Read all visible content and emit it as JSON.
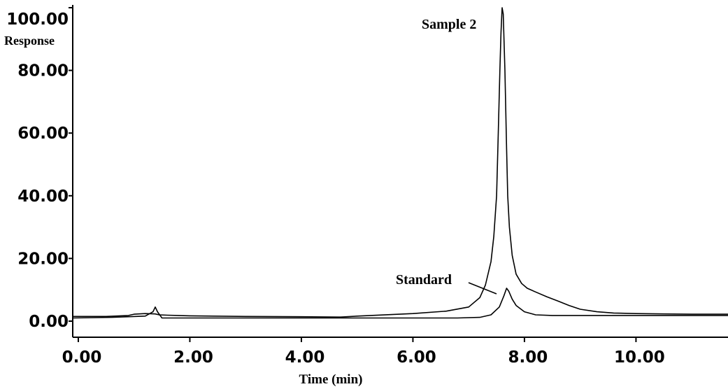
{
  "chart_data": {
    "type": "line",
    "title": "",
    "xlabel": "Time (min)",
    "ylabel": "Response",
    "xlim": [
      -0.1,
      11.65
    ],
    "ylim": [
      0,
      100
    ],
    "x_ticks": [
      0,
      2,
      4,
      6,
      8,
      10
    ],
    "x_tick_labels": [
      "0.00",
      "2.00",
      "4.00",
      "6.00",
      "8.00",
      "10.00"
    ],
    "y_ticks": [
      0,
      20,
      40,
      60,
      80,
      100
    ],
    "y_tick_labels": [
      "0.00",
      "20.00",
      "40.00",
      "60.00",
      "80.00",
      "100.00"
    ],
    "grid": false,
    "legend": "none",
    "annotations": [
      {
        "text": "Sample 2",
        "target_series": 0
      },
      {
        "text": "Standard",
        "target_series": 1
      }
    ],
    "series": [
      {
        "name": "Sample 2",
        "color": "#000000",
        "x": [
          -0.1,
          0.5,
          0.9,
          1.0,
          1.2,
          1.38,
          1.45,
          1.6,
          2.0,
          3.0,
          4.0,
          4.7,
          5.0,
          6.0,
          6.6,
          7.0,
          7.2,
          7.3,
          7.4,
          7.45,
          7.5,
          7.53,
          7.56,
          7.58,
          7.6,
          7.62,
          7.65,
          7.68,
          7.7,
          7.73,
          7.78,
          7.85,
          7.95,
          8.05,
          8.2,
          8.4,
          8.6,
          8.8,
          9.0,
          9.3,
          9.6,
          10.0,
          10.5,
          11.0,
          11.65
        ],
        "y": [
          1.5,
          1.5,
          1.8,
          2.2,
          2.4,
          2.3,
          2.0,
          1.9,
          1.7,
          1.5,
          1.4,
          1.3,
          1.6,
          2.4,
          3.2,
          4.5,
          7.5,
          11.5,
          19,
          27,
          40,
          60,
          80,
          92,
          100,
          98,
          80,
          55,
          40,
          30,
          21,
          15,
          12,
          10.5,
          9.3,
          7.8,
          6.4,
          5.0,
          3.8,
          3.0,
          2.6,
          2.4,
          2.3,
          2.2,
          2.2
        ]
      },
      {
        "name": "Standard",
        "color": "#000000",
        "x": [
          -0.1,
          0.6,
          1.2,
          1.34,
          1.38,
          1.42,
          1.5,
          2.0,
          3.0,
          4.0,
          5.0,
          6.0,
          6.8,
          7.2,
          7.4,
          7.55,
          7.63,
          7.68,
          7.72,
          7.78,
          7.85,
          8.0,
          8.2,
          8.5,
          9.0,
          10.0,
          11.0,
          11.65
        ],
        "y": [
          1.0,
          1.2,
          1.6,
          3.0,
          4.5,
          3.0,
          1.0,
          1.0,
          1.0,
          1.0,
          1.0,
          1.0,
          1.0,
          1.2,
          2.0,
          4.5,
          8.0,
          10.5,
          9.5,
          7.0,
          5.0,
          3.0,
          2.0,
          1.8,
          1.8,
          1.8,
          1.8,
          1.8
        ]
      }
    ]
  }
}
